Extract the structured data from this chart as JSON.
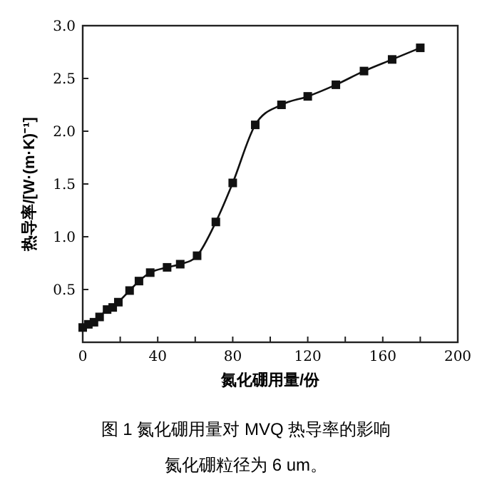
{
  "chart_data": {
    "type": "line",
    "xlabel": "氮化硼用量/份",
    "ylabel": "热导率/[W·(m·K)⁻¹]",
    "annotations": [
      "图 1 氮化硼用量对 MVQ 热导率的影响",
      "氮化硼粒径为 6 um。"
    ],
    "x": [
      0,
      3,
      6,
      9,
      13,
      16,
      19,
      25,
      30,
      36,
      45,
      52,
      61,
      71,
      80,
      92,
      106,
      120,
      135,
      150,
      165,
      180
    ],
    "series": [
      {
        "color": "#111111",
        "values": [
          0.14,
          0.17,
          0.19,
          0.24,
          0.31,
          0.33,
          0.38,
          0.49,
          0.58,
          0.66,
          0.71,
          0.74,
          0.82,
          1.14,
          1.51,
          2.06,
          2.25,
          2.33,
          2.44,
          2.57,
          2.68,
          2.79
        ]
      }
    ],
    "xlim": [
      0,
      200
    ],
    "xticks": [
      0,
      {
        "value": 20,
        "label": null
      },
      40,
      {
        "value": 60,
        "label": null
      },
      80,
      {
        "value": 100,
        "label": null
      },
      120,
      {
        "value": 140,
        "label": null
      },
      160,
      {
        "value": 180,
        "label": null
      },
      200
    ],
    "ylim": [
      0,
      3.0
    ],
    "yticks": [
      {
        "value": 0.5,
        "label": "0.5"
      },
      {
        "value": 1.0,
        "label": "1.0"
      },
      {
        "value": 1.5,
        "label": "1.5"
      },
      {
        "value": 2.0,
        "label": "2.0"
      },
      {
        "value": 2.5,
        "label": "2.5"
      },
      {
        "value": 3.0,
        "label": "3.0"
      }
    ],
    "marker": "square",
    "line_style": "solid",
    "grid": false
  }
}
